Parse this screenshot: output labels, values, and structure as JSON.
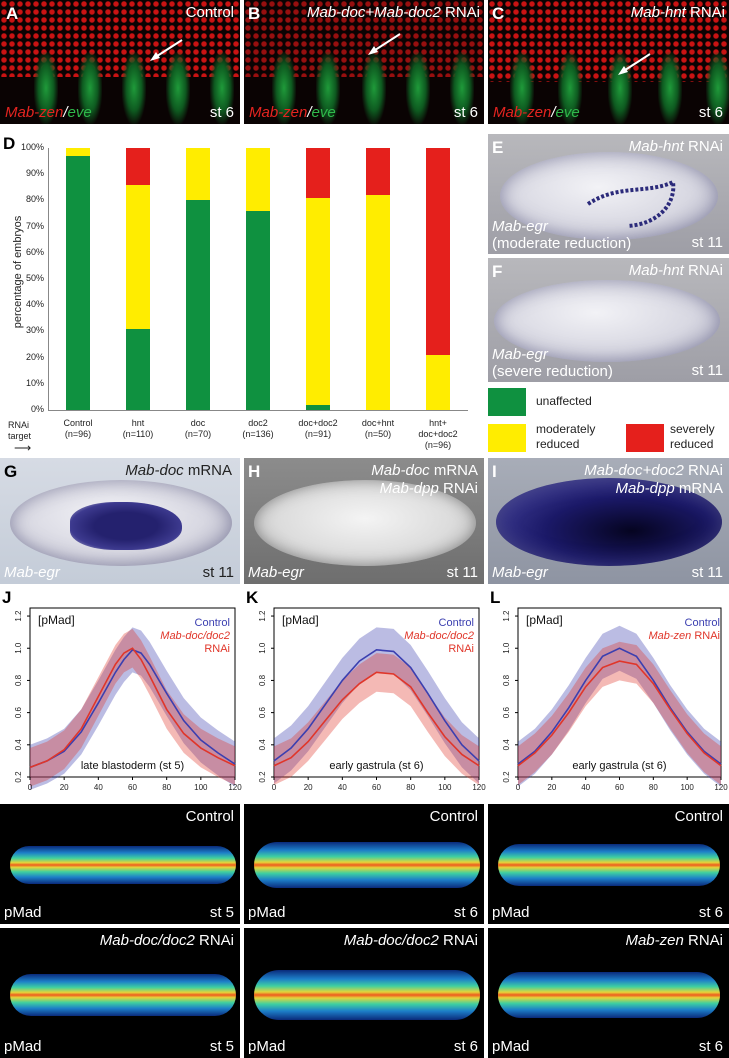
{
  "panelA": {
    "letter": "A",
    "title": "Control",
    "gene1": "Mab-zen",
    "slash": "/",
    "gene2": "eve",
    "stage": "st 6"
  },
  "panelB": {
    "letter": "B",
    "title_genes": "Mab-doc+Mab-doc2",
    "title_suffix": " RNAi",
    "gene1": "Mab-zen",
    "slash": "/",
    "gene2": "eve",
    "stage": "st 6"
  },
  "panelC": {
    "letter": "C",
    "title_gene": "Mab-hnt",
    "title_suffix": " RNAi",
    "gene1": "Mab-zen",
    "slash": "/",
    "gene2": "eve",
    "stage": "st 6"
  },
  "panelD": {
    "letter": "D",
    "rnai_label": "RNAi\ntarget",
    "arrow": "⟶"
  },
  "chart_data": [
    {
      "type": "bar",
      "panel": "D",
      "stacked": true,
      "ylabel": "percentage of embryos",
      "ylim": [
        0,
        100
      ],
      "yticks": [
        "0%",
        "10%",
        "20%",
        "30%",
        "40%",
        "50%",
        "60%",
        "70%",
        "80%",
        "90%",
        "100%"
      ],
      "categories": [
        "Control\n(n=96)",
        "hnt\n(n=110)",
        "doc\n(n=70)",
        "doc2\n(n=136)",
        "doc+doc2\n(n=91)",
        "doc+hnt\n(n=50)",
        "hnt+\ndoc+doc2\n(n=96)"
      ],
      "series": [
        {
          "name": "unaffected",
          "color": "#0f9140",
          "values": [
            97,
            31,
            80,
            76,
            2,
            0,
            0
          ]
        },
        {
          "name": "moderately reduced",
          "color": "#ffed00",
          "values": [
            3,
            55,
            20,
            24,
            79,
            82,
            21
          ]
        },
        {
          "name": "severely reduced",
          "color": "#e5201c",
          "values": [
            0,
            14,
            0,
            0,
            19,
            18,
            79
          ]
        }
      ],
      "legend": [
        {
          "label": "unaffected",
          "color": "#0f9140"
        },
        {
          "label": "moderately\nreduced",
          "color": "#ffed00"
        },
        {
          "label": "severely\nreduced",
          "color": "#e5201c"
        }
      ]
    },
    {
      "type": "line",
      "panel": "J",
      "title": "[pMad]",
      "subtitle": "late blastoderm (st 5)",
      "ylim": [
        0.2,
        1.25
      ],
      "xlim": [
        0,
        120
      ],
      "yticks": [
        "0.2",
        "0.4",
        "0.6",
        "0.8",
        "1.0",
        "1.2"
      ],
      "xticks": [
        "0",
        "20",
        "40",
        "60",
        "80",
        "100",
        "120"
      ],
      "x": [
        0,
        10,
        20,
        30,
        40,
        50,
        55,
        60,
        65,
        70,
        80,
        90,
        100,
        110,
        120
      ],
      "series": [
        {
          "name": "Control",
          "color": "#3b3fb0",
          "values": [
            0.26,
            0.3,
            0.36,
            0.48,
            0.66,
            0.85,
            0.93,
            0.99,
            0.97,
            0.9,
            0.72,
            0.55,
            0.43,
            0.35,
            0.28
          ]
        },
        {
          "name": "Mab-doc/doc2 RNAi",
          "color": "#e0362a",
          "values": [
            0.26,
            0.3,
            0.37,
            0.5,
            0.7,
            0.9,
            0.97,
            1.0,
            0.93,
            0.83,
            0.62,
            0.47,
            0.38,
            0.32,
            0.27
          ]
        }
      ]
    },
    {
      "type": "line",
      "panel": "K",
      "title": "[pMad]",
      "subtitle": "early gastrula (st 6)",
      "ylim": [
        0.2,
        1.25
      ],
      "xlim": [
        0,
        120
      ],
      "yticks": [
        "0.2",
        "0.4",
        "0.6",
        "0.8",
        "1.0",
        "1.2"
      ],
      "xticks": [
        "0",
        "20",
        "40",
        "60",
        "80",
        "100",
        "120"
      ],
      "x": [
        0,
        10,
        20,
        30,
        40,
        50,
        60,
        70,
        80,
        90,
        100,
        110,
        120
      ],
      "series": [
        {
          "name": "Control",
          "color": "#3b3fb0",
          "values": [
            0.3,
            0.38,
            0.5,
            0.65,
            0.8,
            0.92,
            0.99,
            0.98,
            0.88,
            0.72,
            0.55,
            0.4,
            0.3
          ]
        },
        {
          "name": "Mab-doc/doc2 RNAi",
          "color": "#e0362a",
          "values": [
            0.27,
            0.32,
            0.42,
            0.55,
            0.68,
            0.78,
            0.85,
            0.84,
            0.76,
            0.6,
            0.45,
            0.34,
            0.27
          ]
        }
      ]
    },
    {
      "type": "line",
      "panel": "L",
      "title": "[pMad]",
      "subtitle": "early gastrula (st 6)",
      "ylim": [
        0.2,
        1.25
      ],
      "xlim": [
        0,
        120
      ],
      "yticks": [
        "0.2",
        "0.4",
        "0.6",
        "0.8",
        "1.0",
        "1.2"
      ],
      "xticks": [
        "0",
        "20",
        "40",
        "60",
        "80",
        "100",
        "120"
      ],
      "x": [
        0,
        10,
        20,
        30,
        40,
        50,
        60,
        70,
        80,
        90,
        100,
        110,
        120
      ],
      "series": [
        {
          "name": "Control",
          "color": "#3b3fb0",
          "values": [
            0.28,
            0.36,
            0.48,
            0.63,
            0.8,
            0.95,
            1.0,
            0.95,
            0.8,
            0.63,
            0.48,
            0.36,
            0.28
          ]
        },
        {
          "name": "Mab-zen RNAi",
          "color": "#e0362a",
          "values": [
            0.27,
            0.35,
            0.46,
            0.6,
            0.76,
            0.88,
            0.92,
            0.9,
            0.78,
            0.62,
            0.47,
            0.35,
            0.27
          ]
        }
      ]
    }
  ],
  "panelE": {
    "letter": "E",
    "title_gene": "Mab-hnt",
    "title_suffix": " RNAi",
    "probe": "Mab-egr",
    "note": "(moderate reduction)",
    "stage": "st 11"
  },
  "panelF": {
    "letter": "F",
    "title_gene": "Mab-hnt",
    "title_suffix": " RNAi",
    "probe": "Mab-egr",
    "note": "(severe reduction)",
    "stage": "st 11"
  },
  "panelG": {
    "letter": "G",
    "title_gene": "Mab-doc",
    "title_suffix": " mRNA",
    "probe": "Mab-egr",
    "stage": "st 11"
  },
  "panelH": {
    "letter": "H",
    "title1_gene": "Mab-doc",
    "title1_suffix": " mRNA",
    "title2_gene": "Mab-dpp",
    "title2_suffix": " RNAi",
    "probe": "Mab-egr",
    "stage": "st 11"
  },
  "panelI": {
    "letter": "I",
    "title1_gene": "Mab-doc+doc2",
    "title1_suffix": " RNAi",
    "title2_gene": "Mab-dpp",
    "title2_suffix": " mRNA",
    "probe": "Mab-egr",
    "stage": "st 11"
  },
  "panelJ": {
    "letter": "J",
    "legend_control": "Control",
    "legend_rnai_gene": "Mab-doc/doc2",
    "legend_rnai_suffix": "RNAi"
  },
  "panelK": {
    "letter": "K",
    "legend_control": "Control",
    "legend_rnai_gene": "Mab-doc/doc2",
    "legend_rnai_suffix": "RNAi"
  },
  "panelL": {
    "letter": "L",
    "legend_control": "Control",
    "legend_rnai_gene": "Mab-zen",
    "legend_rnai_suffix": " RNAi"
  },
  "heatmaps": {
    "row1": [
      {
        "title": "Control",
        "label": "pMad",
        "stage": "st 5"
      },
      {
        "title": "Control",
        "label": "pMad",
        "stage": "st 6"
      },
      {
        "title": "Control",
        "label": "pMad",
        "stage": "st 6"
      }
    ],
    "row2": [
      {
        "title_gene": "Mab-doc/doc2",
        "title_suffix": " RNAi",
        "label": "pMad",
        "stage": "st 5"
      },
      {
        "title_gene": "Mab-doc/doc2",
        "title_suffix": " RNAi",
        "label": "pMad",
        "stage": "st 6"
      },
      {
        "title_gene": "Mab-zen",
        "title_suffix": " RNAi",
        "label": "pMad",
        "stage": "st 6"
      }
    ]
  }
}
